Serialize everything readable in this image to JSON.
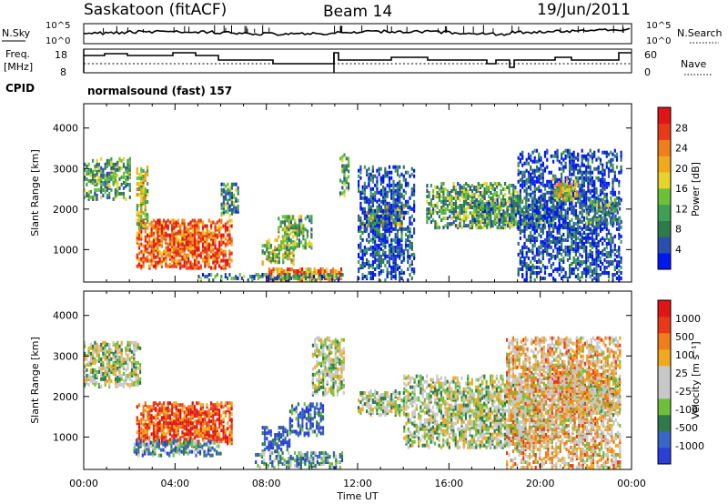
{
  "header": {
    "station": "Saskatoon (fitACF)",
    "beam": "Beam 14",
    "date": "19/Jun/2011"
  },
  "noise_panel": {
    "left_label": "N.Sky",
    "right_label": "N.Search",
    "left_ticks": [
      "10^5",
      "10^0"
    ],
    "right_ticks": [
      "10^5",
      "10^0"
    ]
  },
  "freq_panel": {
    "left_label_1": "Freq.",
    "left_label_2": "[MHz]",
    "left_ticks": [
      "18",
      "8"
    ],
    "right_label": "Nave",
    "right_ticks": [
      "60",
      "0"
    ]
  },
  "cpid": {
    "label": "CPID",
    "text": "normalsound (fast) 157"
  },
  "x_axis": {
    "label": "Time UT",
    "ticks": [
      "00:00",
      "04:00",
      "08:00",
      "12:00",
      "16:00",
      "20:00",
      "00:00"
    ]
  },
  "chart_data": [
    {
      "type": "heatmap",
      "name": "power",
      "ylabel": "Slant Range [km]",
      "ylim": [
        200,
        4600
      ],
      "xlim": [
        0,
        24
      ],
      "yticks": [
        "4000",
        "3000",
        "2000",
        "1000"
      ],
      "colorbar": {
        "label": "Power [dB]",
        "ticks": [
          "28",
          "24",
          "20",
          "16",
          "12",
          "8",
          "4"
        ],
        "colors": [
          "#0018f0",
          "#2a4fb0",
          "#2f7a4a",
          "#3f9f55",
          "#6dc03a",
          "#e6d42a",
          "#f0a81c",
          "#ef7d1a",
          "#e83a18",
          "#e01515"
        ]
      },
      "regions": [
        {
          "t": [
            0.0,
            2.0
          ],
          "r": [
            2200,
            3200
          ],
          "level": 0.35
        },
        {
          "t": [
            2.3,
            6.5
          ],
          "r": [
            500,
            1700
          ],
          "level": 0.8
        },
        {
          "t": [
            2.3,
            2.8
          ],
          "r": [
            1500,
            3000
          ],
          "level": 0.5
        },
        {
          "t": [
            6.0,
            6.8
          ],
          "r": [
            1800,
            2600
          ],
          "level": 0.3
        },
        {
          "t": [
            7.8,
            9.2
          ],
          "r": [
            600,
            1200
          ],
          "level": 0.45
        },
        {
          "t": [
            8.5,
            10.0
          ],
          "r": [
            1000,
            1800
          ],
          "level": 0.4
        },
        {
          "t": [
            8.0,
            11.3
          ],
          "r": [
            200,
            500
          ],
          "level": 0.7
        },
        {
          "t": [
            5.0,
            11.3
          ],
          "r": [
            200,
            350
          ],
          "level": 0.3
        },
        {
          "t": [
            11.2,
            11.6
          ],
          "r": [
            2300,
            3300
          ],
          "level": 0.35
        },
        {
          "t": [
            12.2,
            14.0
          ],
          "r": [
            1500,
            2000
          ],
          "level": 0.55
        },
        {
          "t": [
            12.0,
            14.5
          ],
          "r": [
            200,
            3000
          ],
          "level": 0.15
        },
        {
          "t": [
            15.0,
            19.0
          ],
          "r": [
            1500,
            2600
          ],
          "level": 0.35
        },
        {
          "t": [
            17.0,
            21.0
          ],
          "r": [
            1500,
            2200
          ],
          "level": 0.3
        },
        {
          "t": [
            19.0,
            23.5
          ],
          "r": [
            200,
            3400
          ],
          "level": 0.12
        },
        {
          "t": [
            20.5,
            21.6
          ],
          "r": [
            2200,
            2700
          ],
          "level": 0.55
        },
        {
          "t": [
            22.0,
            23.5
          ],
          "r": [
            1600,
            2200
          ],
          "level": 0.3
        }
      ]
    },
    {
      "type": "heatmap",
      "name": "velocity",
      "ylabel": "Slant Range [km]",
      "ylim": [
        200,
        4600
      ],
      "xlim": [
        0,
        24
      ],
      "yticks": [
        "4000",
        "3000",
        "2000",
        "1000"
      ],
      "colorbar": {
        "label": "Velocity [m s⁻¹]",
        "ticks": [
          "1000",
          "500",
          "100",
          "25",
          "-25",
          "-100",
          "-500",
          "-1000"
        ],
        "colors": [
          "#2a3fd8",
          "#3866c8",
          "#2f7a4a",
          "#6dc03a",
          "#c8c8c8",
          "#c8c8c8",
          "#f0a81c",
          "#ef7d1a",
          "#e83a18",
          "#e01515"
        ]
      },
      "regions": [
        {
          "t": [
            0.0,
            2.5
          ],
          "r": [
            2200,
            3300
          ],
          "level": 0.45
        },
        {
          "t": [
            2.3,
            6.5
          ],
          "r": [
            800,
            1800
          ],
          "level": 0.85
        },
        {
          "t": [
            2.0,
            6.0
          ],
          "r": [
            500,
            900
          ],
          "level": 0.25
        },
        {
          "t": [
            7.8,
            9.0
          ],
          "r": [
            600,
            1200
          ],
          "level": 0.1
        },
        {
          "t": [
            9.0,
            10.5
          ],
          "r": [
            1000,
            1800
          ],
          "level": 0.1
        },
        {
          "t": [
            7.5,
            11.3
          ],
          "r": [
            200,
            600
          ],
          "level": 0.3
        },
        {
          "t": [
            10.0,
            11.4
          ],
          "r": [
            2000,
            3400
          ],
          "level": 0.45
        },
        {
          "t": [
            12.0,
            14.0
          ],
          "r": [
            1500,
            2100
          ],
          "level": 0.45
        },
        {
          "t": [
            14.0,
            20.0
          ],
          "r": [
            700,
            2500
          ],
          "level": 0.45
        },
        {
          "t": [
            20.5,
            21.5
          ],
          "r": [
            2000,
            2700
          ],
          "level": 0.95
        },
        {
          "t": [
            21.0,
            23.5
          ],
          "r": [
            1500,
            2500
          ],
          "level": 0.45
        },
        {
          "t": [
            18.5,
            23.5
          ],
          "r": [
            200,
            3400
          ],
          "level": 0.6
        }
      ]
    }
  ]
}
